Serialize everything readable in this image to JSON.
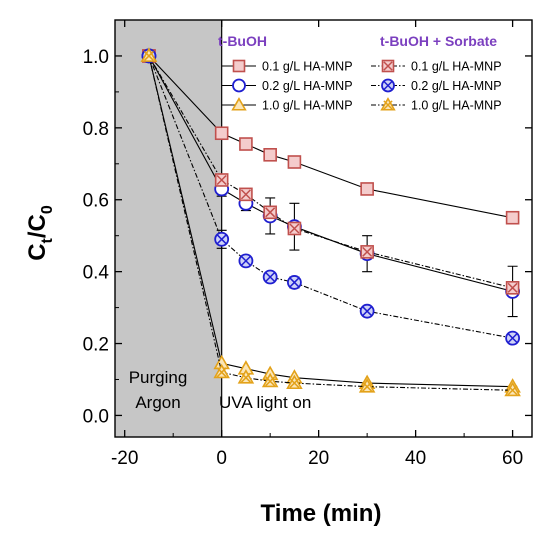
{
  "chart_data": {
    "type": "line",
    "xlabel": "Time (min)",
    "ylabel": {
      "main": "C",
      "sub1": "t",
      "slash": "/C",
      "sub2": "0"
    },
    "xlim": [
      -22,
      64
    ],
    "ylim": [
      -0.06,
      1.1
    ],
    "x_ticks": [
      -20,
      0,
      20,
      40,
      60
    ],
    "y_ticks": [
      0.0,
      0.2,
      0.4,
      0.6,
      0.8,
      1.0
    ],
    "x_tick_labels": [
      "-20",
      "0",
      "20",
      "40",
      "60"
    ],
    "y_tick_labels": [
      "0.0",
      "0.2",
      "0.4",
      "0.6",
      "0.8",
      "1.0"
    ],
    "shaded_region": {
      "x_from": -22,
      "x_to": 0,
      "label_line1": "Purging",
      "label_line2": "Argon",
      "color": "#c6c6c6"
    },
    "annotation": "UVA light on",
    "group_headers": [
      "t-BuOH",
      "t-BuOH + Sorbate"
    ],
    "header_color": "#7b3fbf",
    "series": [
      {
        "name": "0.1 g/L HA-MNP",
        "group": "t-BuOH",
        "marker": "square",
        "color": "#c0504d",
        "fill": "#f4cccc",
        "line": "solid",
        "x": [
          -15,
          0,
          5,
          10,
          15,
          30,
          60
        ],
        "y": [
          1.0,
          0.785,
          0.755,
          0.725,
          0.705,
          0.63,
          0.55
        ],
        "err": [
          0,
          0,
          0,
          0,
          0,
          0,
          0
        ]
      },
      {
        "name": "0.2 g/L HA-MNP",
        "group": "t-BuOH",
        "marker": "circle",
        "color": "#1f1fd0",
        "fill": "#ffffff",
        "line": "solid",
        "x": [
          -15,
          0,
          5,
          10,
          15,
          30,
          60
        ],
        "y": [
          1.0,
          0.63,
          0.59,
          0.555,
          0.525,
          0.45,
          0.345
        ],
        "err": [
          0,
          0.02,
          0.02,
          0.05,
          0.065,
          0.05,
          0.07
        ]
      },
      {
        "name": "1.0 g/L HA-MNP",
        "group": "t-BuOH",
        "marker": "triangle",
        "color": "#e3a21a",
        "fill": "#fbe6b8",
        "line": "solid",
        "x": [
          -15,
          0,
          5,
          10,
          15,
          30,
          60
        ],
        "y": [
          1.0,
          0.145,
          0.13,
          0.115,
          0.105,
          0.09,
          0.08
        ],
        "err": [
          0,
          0,
          0,
          0,
          0,
          0,
          0
        ]
      },
      {
        "name": "0.1 g/L HA-MNP",
        "group": "t-BuOH + Sorbate",
        "marker": "square-x",
        "color": "#c0504d",
        "fill": "#f4cccc",
        "line": "dashdot",
        "x": [
          -15,
          0,
          5,
          10,
          15,
          30,
          60
        ],
        "y": [
          1.0,
          0.655,
          0.615,
          0.565,
          0.52,
          0.455,
          0.355
        ],
        "err": [
          0,
          0,
          0,
          0,
          0,
          0,
          0
        ]
      },
      {
        "name": "0.2 g/L HA-MNP",
        "group": "t-BuOH + Sorbate",
        "marker": "circle-x",
        "color": "#1f1fd0",
        "fill": "#cfd3f7",
        "line": "dashdot",
        "x": [
          -15,
          0,
          5,
          10,
          15,
          30,
          60
        ],
        "y": [
          1.0,
          0.49,
          0.43,
          0.385,
          0.37,
          0.29,
          0.215
        ],
        "err": [
          0,
          0.025,
          0.01,
          0.01,
          0.015,
          0.012,
          0.012
        ]
      },
      {
        "name": "1.0 g/L HA-MNP",
        "group": "t-BuOH + Sorbate",
        "marker": "triangle-x",
        "color": "#e3a21a",
        "fill": "#fbe6b8",
        "line": "dashdot",
        "x": [
          -15,
          0,
          5,
          10,
          15,
          30,
          60
        ],
        "y": [
          1.0,
          0.12,
          0.105,
          0.095,
          0.09,
          0.08,
          0.07
        ],
        "err": [
          0,
          0,
          0,
          0,
          0,
          0,
          0
        ]
      }
    ]
  }
}
